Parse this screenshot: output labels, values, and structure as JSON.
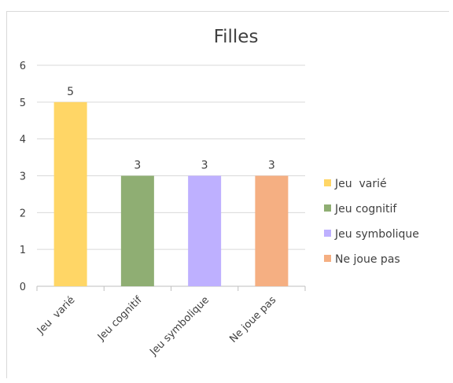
{
  "chart_data": {
    "type": "bar",
    "title": "Filles",
    "categories": [
      "Jeu  varié",
      "Jeu cognitif",
      "Jeu symbolique",
      "Ne joue pas"
    ],
    "values": [
      5,
      3,
      3,
      3
    ],
    "colors": [
      "#FFD666",
      "#8FAE73",
      "#BEB0FF",
      "#F5AF82"
    ],
    "ylim": [
      0,
      6
    ],
    "yticks": [
      0,
      1,
      2,
      3,
      4,
      5,
      6
    ],
    "grid": true,
    "legend_position": "right",
    "legend": [
      "Jeu  varié",
      "Jeu cognitif",
      "Jeu symbolique",
      "Ne joue pas"
    ]
  }
}
